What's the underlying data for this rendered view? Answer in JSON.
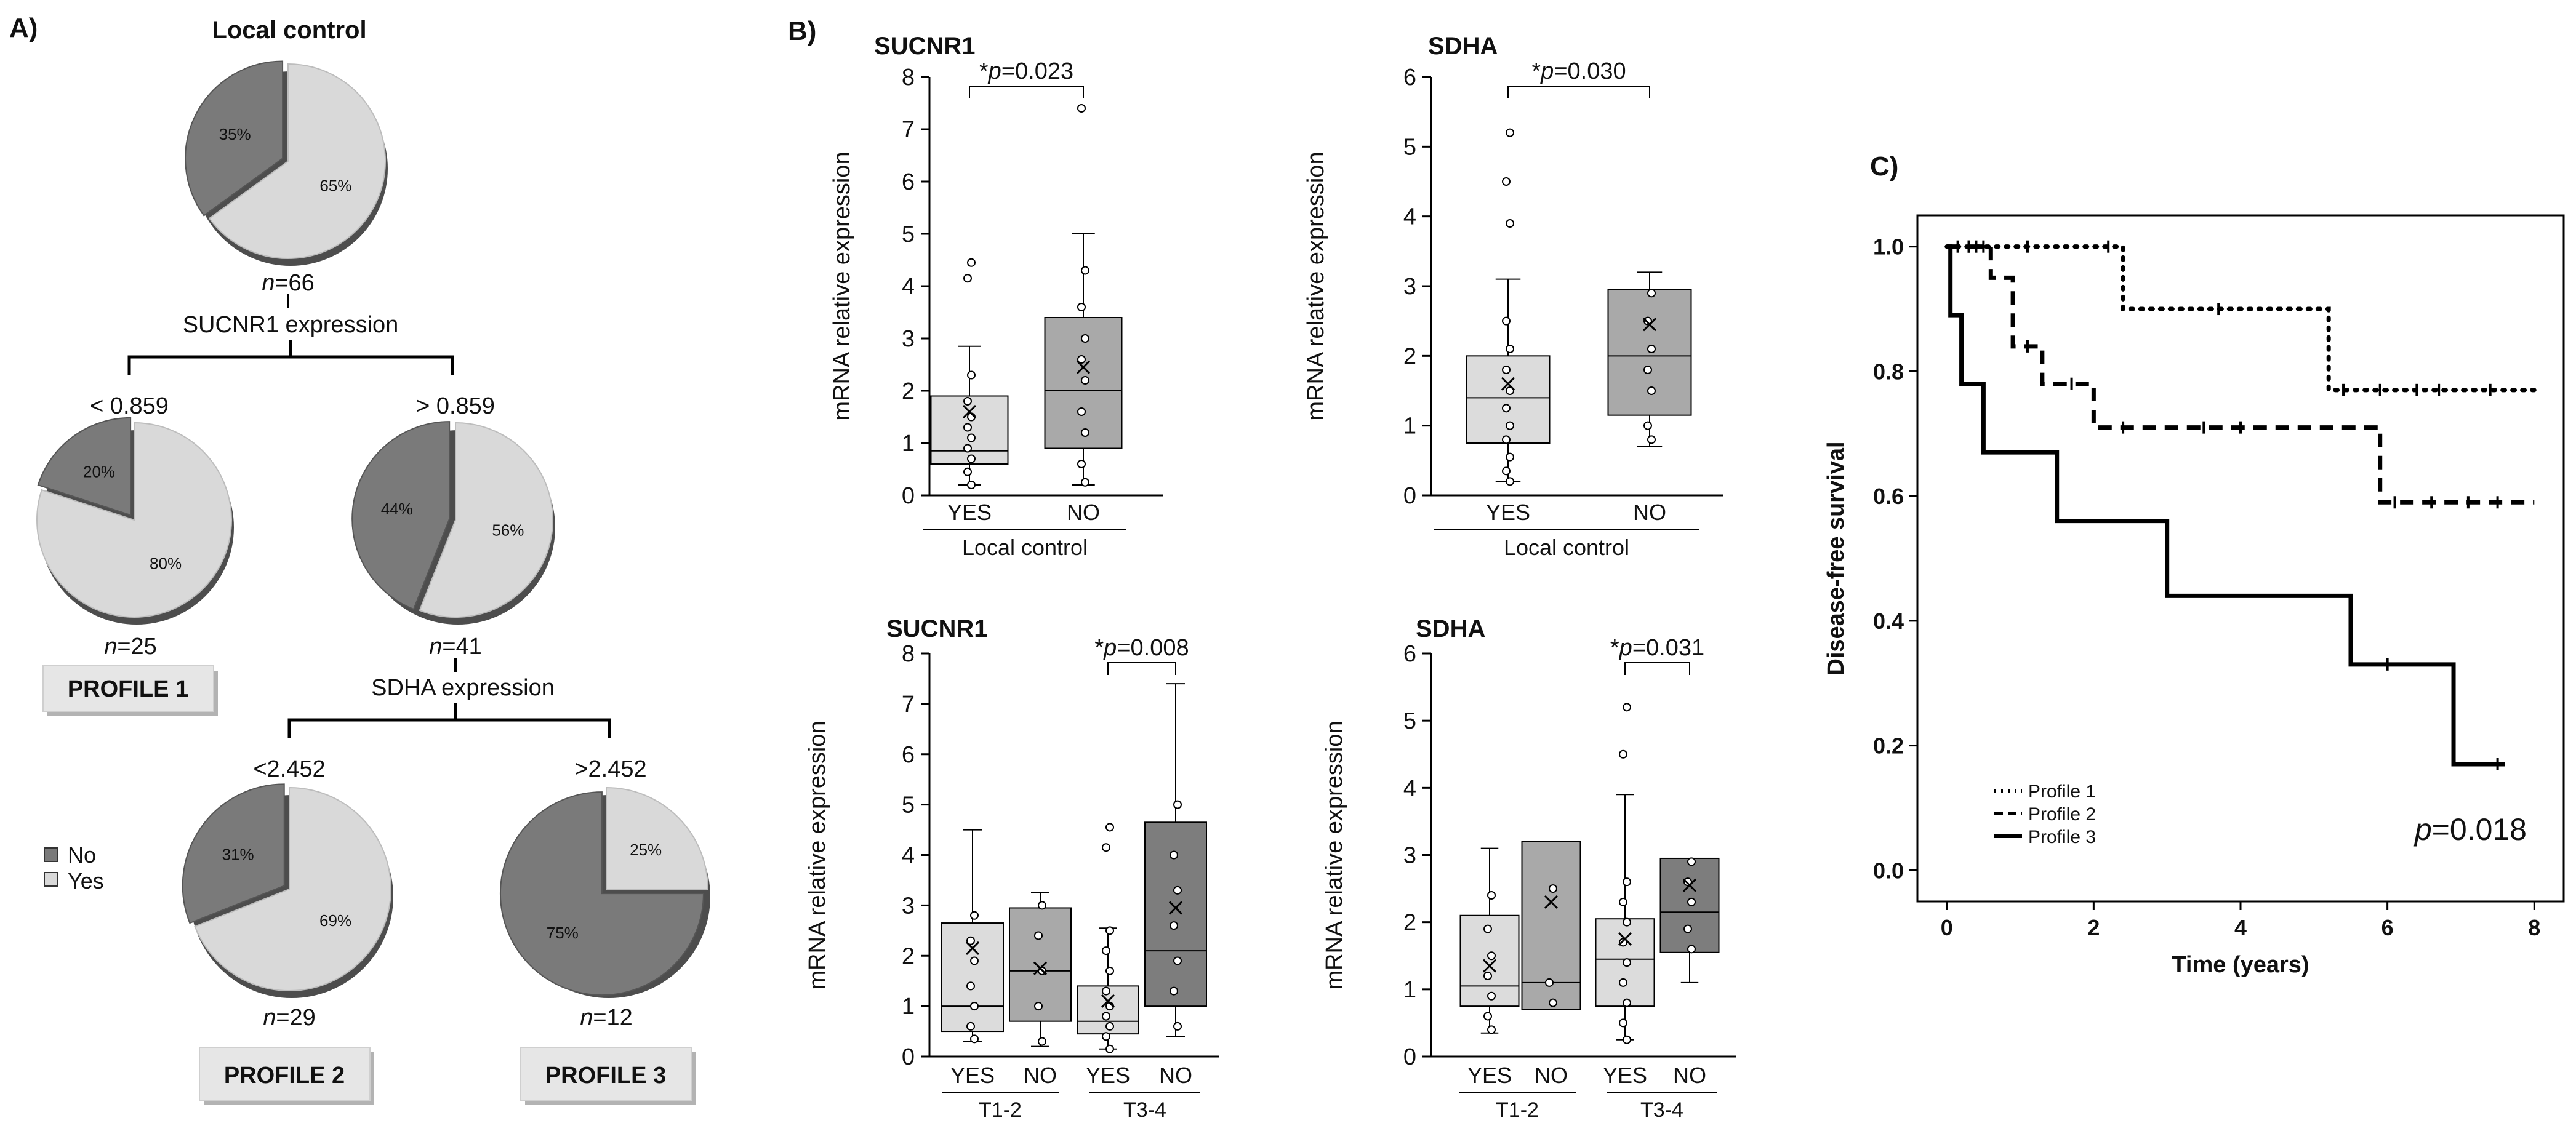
{
  "panel_a": {
    "label": "A)",
    "title": "Local control",
    "root": {
      "n": "66",
      "no": 35,
      "yes": 65
    },
    "split1": {
      "label": "SUCNR1 expression",
      "low": "< 0.859",
      "high": "> 0.859"
    },
    "p1": {
      "n": "25",
      "no": 20,
      "yes": 80,
      "profile": "PROFILE 1"
    },
    "node56": {
      "n": "41",
      "no": 44,
      "yes": 56
    },
    "split2": {
      "label": "SDHA expression",
      "low": "<2.452",
      "high": ">2.452"
    },
    "p2": {
      "n": "29",
      "no": 31,
      "yes": 69,
      "profile": "PROFILE 2"
    },
    "p3": {
      "n": "12",
      "no": 75,
      "yes": 25,
      "profile": "PROFILE 3"
    },
    "legend": {
      "no": "No",
      "yes": "Yes"
    },
    "n_prefix": "n",
    "pct": "%",
    "colors": {
      "no": "#7a7a7a",
      "yes": "#d9d9d9",
      "shade": "#4d4d4d"
    }
  },
  "panel_b": {
    "label": "B)",
    "ylabel": "mRNA relative expression",
    "chart_data": [
      {
        "type": "box",
        "id": "b1",
        "title": "SUCNR1",
        "group_label": "Local control",
        "ylim": [
          0,
          8
        ],
        "categories": [
          "YES",
          "NO"
        ],
        "boxes": [
          {
            "category": "YES",
            "min": 0.2,
            "q1": 0.6,
            "median": 0.85,
            "q3": 1.9,
            "max": 2.85,
            "mean": 1.6,
            "outliers": [
              4.15,
              4.45
            ],
            "points": [
              0.2,
              0.45,
              0.7,
              0.9,
              1.1,
              1.3,
              1.5,
              1.8,
              2.3
            ]
          },
          {
            "category": "NO",
            "min": 0.2,
            "q1": 0.9,
            "median": 2.0,
            "q3": 3.4,
            "max": 5.0,
            "mean": 2.45,
            "outliers": [
              7.4
            ],
            "points": [
              0.25,
              0.6,
              1.2,
              1.6,
              2.2,
              2.6,
              3.0,
              3.6,
              4.3
            ]
          }
        ],
        "annotation": {
          "text": "=0.023",
          "p": "p",
          "star": "*",
          "between": [
            "YES",
            "NO"
          ]
        }
      },
      {
        "type": "box",
        "id": "b2",
        "title": "SDHA",
        "group_label": "Local control",
        "ylim": [
          0,
          6
        ],
        "categories": [
          "YES",
          "NO"
        ],
        "boxes": [
          {
            "category": "YES",
            "min": 0.2,
            "q1": 0.75,
            "median": 1.4,
            "q3": 2.0,
            "max": 3.1,
            "mean": 1.6,
            "outliers": [
              3.9,
              4.5,
              5.2
            ],
            "points": [
              0.2,
              0.35,
              0.55,
              0.8,
              1.0,
              1.25,
              1.5,
              1.8,
              2.1,
              2.5
            ]
          },
          {
            "category": "NO",
            "min": 0.7,
            "q1": 1.15,
            "median": 2.0,
            "q3": 2.95,
            "max": 3.2,
            "mean": 2.45,
            "outliers": [],
            "points": [
              0.8,
              1.0,
              1.5,
              1.8,
              2.1,
              2.5,
              2.9
            ]
          }
        ],
        "annotation": {
          "text": "=0.030",
          "p": "p",
          "star": "*",
          "between": [
            "YES",
            "NO"
          ]
        }
      },
      {
        "type": "box",
        "id": "b3",
        "title": "SUCNR1",
        "ylim": [
          0,
          8
        ],
        "categories": [
          "YES",
          "NO",
          "YES",
          "NO"
        ],
        "groups": [
          "T1-2",
          "T3-4"
        ],
        "boxes": [
          {
            "category": "YES",
            "min": 0.3,
            "q1": 0.5,
            "median": 1.0,
            "q3": 2.65,
            "max": 4.5,
            "mean": 2.15,
            "outliers": [],
            "points": [
              0.35,
              0.6,
              1.0,
              1.4,
              1.9,
              2.3,
              2.8
            ]
          },
          {
            "category": "NO",
            "min": 0.2,
            "q1": 0.7,
            "median": 1.7,
            "q3": 2.95,
            "max": 3.25,
            "mean": 1.75,
            "outliers": [],
            "points": [
              0.3,
              1.0,
              1.7,
              2.4,
              3.0
            ]
          },
          {
            "category": "YES",
            "min": 0.15,
            "q1": 0.45,
            "median": 0.7,
            "q3": 1.4,
            "max": 2.55,
            "mean": 1.1,
            "outliers": [
              4.15,
              4.55
            ],
            "points": [
              0.15,
              0.4,
              0.6,
              0.8,
              1.0,
              1.3,
              1.7,
              2.1,
              2.5
            ]
          },
          {
            "category": "NO",
            "min": 0.4,
            "q1": 1.0,
            "median": 2.1,
            "q3": 4.65,
            "max": 7.4,
            "mean": 2.95,
            "outliers": [],
            "points": [
              0.6,
              1.3,
              1.9,
              2.6,
              3.3,
              4.0,
              5.0
            ]
          }
        ],
        "annotation": {
          "text": "=0.008",
          "p": "p",
          "star": "*",
          "between": [
            2,
            3
          ]
        }
      },
      {
        "type": "box",
        "id": "b4",
        "title": "SDHA",
        "ylim": [
          0,
          6
        ],
        "categories": [
          "YES",
          "NO",
          "YES",
          "NO"
        ],
        "groups": [
          "T1-2",
          "T3-4"
        ],
        "boxes": [
          {
            "category": "YES",
            "min": 0.35,
            "q1": 0.75,
            "median": 1.05,
            "q3": 2.1,
            "max": 3.1,
            "mean": 1.35,
            "outliers": [],
            "points": [
              0.4,
              0.6,
              0.9,
              1.2,
              1.5,
              1.9,
              2.4
            ]
          },
          {
            "category": "NO",
            "min": 0.7,
            "q1": 0.7,
            "median": 1.1,
            "q3": 3.2,
            "max": 3.2,
            "mean": 2.3,
            "outliers": [],
            "points": [
              0.8,
              1.1,
              2.5
            ]
          },
          {
            "category": "YES",
            "min": 0.25,
            "q1": 0.75,
            "median": 1.45,
            "q3": 2.05,
            "max": 3.9,
            "mean": 1.75,
            "outliers": [
              4.5,
              5.2
            ],
            "points": [
              0.25,
              0.5,
              0.8,
              1.1,
              1.4,
              1.7,
              2.0,
              2.3,
              2.6
            ]
          },
          {
            "category": "NO",
            "min": 1.1,
            "q1": 1.55,
            "median": 2.15,
            "q3": 2.95,
            "max": 2.95,
            "mean": 2.55,
            "outliers": [],
            "points": [
              1.6,
              1.9,
              2.3,
              2.6,
              2.9
            ]
          }
        ],
        "annotation": {
          "text": "=0.031",
          "p": "p",
          "star": "*",
          "between": [
            2,
            3
          ]
        }
      }
    ],
    "colors": {
      "yes": "#dcdcdc",
      "no": "#a9a9a9",
      "dark": "#7d7d7d"
    }
  },
  "panel_c": {
    "label": "C)",
    "chart_data": {
      "type": "line",
      "title": "",
      "xlabel": "Time (years)",
      "ylabel": "Disease-free survival",
      "xlim": [
        -0.4,
        8.4
      ],
      "ylim": [
        -0.05,
        1.05
      ],
      "xticks": [
        0,
        2,
        4,
        6,
        8
      ],
      "yticks": [
        0.0,
        0.2,
        0.4,
        0.6,
        0.8,
        1.0
      ],
      "series": [
        {
          "name": "Profile 1",
          "dash": "dotted",
          "steps": [
            [
              0,
              1.0
            ],
            [
              2.4,
              0.9
            ],
            [
              5.2,
              0.77
            ],
            [
              8.0,
              0.77
            ]
          ],
          "censored": [
            [
              0.15,
              1.0
            ],
            [
              0.3,
              1.0
            ],
            [
              0.4,
              1.0
            ],
            [
              0.5,
              1.0
            ],
            [
              1.1,
              1.0
            ],
            [
              2.2,
              1.0
            ],
            [
              3.7,
              0.9
            ],
            [
              5.4,
              0.77
            ],
            [
              5.9,
              0.77
            ],
            [
              6.4,
              0.77
            ],
            [
              6.7,
              0.77
            ],
            [
              7.4,
              0.77
            ]
          ]
        },
        {
          "name": "Profile 2",
          "dash": "dashed",
          "steps": [
            [
              0,
              1.0
            ],
            [
              0.6,
              0.95
            ],
            [
              0.9,
              0.84
            ],
            [
              1.3,
              0.78
            ],
            [
              2.0,
              0.71
            ],
            [
              5.9,
              0.59
            ],
            [
              8.0,
              0.59
            ]
          ],
          "censored": [
            [
              0.3,
              1.0
            ],
            [
              1.1,
              0.84
            ],
            [
              1.7,
              0.78
            ],
            [
              2.4,
              0.71
            ],
            [
              3.5,
              0.71
            ],
            [
              4.0,
              0.71
            ],
            [
              6.1,
              0.59
            ],
            [
              6.6,
              0.59
            ],
            [
              7.1,
              0.59
            ],
            [
              7.5,
              0.59
            ]
          ]
        },
        {
          "name": "Profile 3",
          "dash": "solid",
          "steps": [
            [
              0,
              1.0
            ],
            [
              0.05,
              0.89
            ],
            [
              0.2,
              0.78
            ],
            [
              0.5,
              0.67
            ],
            [
              1.5,
              0.56
            ],
            [
              3.0,
              0.44
            ],
            [
              5.5,
              0.33
            ],
            [
              6.9,
              0.17
            ],
            [
              7.6,
              0.17
            ]
          ],
          "censored": [
            [
              6.0,
              0.33
            ],
            [
              7.5,
              0.17
            ]
          ]
        }
      ],
      "annotation": {
        "p": "p",
        "text": "=0.018"
      }
    }
  }
}
